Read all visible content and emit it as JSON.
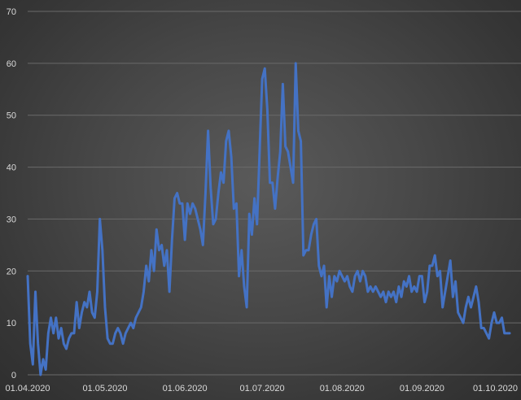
{
  "chart_data": {
    "type": "line",
    "title": "",
    "xlabel": "",
    "ylabel": "",
    "ylim": [
      0,
      70
    ],
    "yticks": [
      0,
      10,
      20,
      30,
      40,
      50,
      60,
      70
    ],
    "xticks": [
      "01.04.2020",
      "01.05.2020",
      "01.06.2020",
      "01.07.2020",
      "01.08.2020",
      "01.09.2020",
      "01.10.2020"
    ],
    "x_start": "01.04.2020",
    "grid": true,
    "legend": "none",
    "colors": {
      "series": "#4472c4",
      "grid": "#6a6a6a",
      "tick_text": "#d9d9d9"
    },
    "series": [
      {
        "values": [
          19,
          6,
          2,
          16,
          6,
          0,
          3,
          1,
          8,
          11,
          8,
          11,
          7,
          9,
          6,
          5,
          7,
          8,
          8,
          14,
          9,
          12,
          14,
          13,
          16,
          12,
          11,
          16,
          30,
          24,
          13,
          7,
          6,
          6,
          8,
          9,
          8,
          6,
          8,
          9,
          10,
          9,
          11,
          12,
          13,
          16,
          21,
          18,
          24,
          20,
          28,
          24,
          25,
          21,
          24,
          16,
          26,
          34,
          35,
          33,
          33,
          26,
          33,
          31,
          33,
          32,
          30,
          28,
          25,
          35,
          47,
          36,
          29,
          30,
          35,
          39,
          37,
          45,
          47,
          42,
          32,
          33,
          19,
          24,
          17,
          13,
          31,
          27,
          34,
          29,
          43,
          57,
          59,
          51,
          37,
          37,
          32,
          38,
          43,
          56,
          44,
          43,
          40,
          37,
          60,
          47,
          45,
          23,
          24,
          24,
          27,
          29,
          30,
          21,
          19,
          21,
          13,
          19,
          15,
          19,
          18,
          20,
          19,
          18,
          19,
          17,
          16,
          19,
          20,
          18,
          20,
          19,
          16,
          17,
          16,
          17,
          16,
          15,
          16,
          14,
          16,
          15,
          16,
          14,
          17,
          15,
          18,
          17,
          19,
          16,
          17,
          16,
          19,
          19,
          14,
          16,
          21,
          21,
          23,
          19,
          20,
          13,
          16,
          19,
          22,
          15,
          18,
          12,
          11,
          10,
          13,
          15,
          13,
          15,
          17,
          14,
          9,
          9,
          8,
          7,
          10,
          12,
          10,
          10,
          11,
          8,
          8,
          8
        ]
      }
    ]
  }
}
